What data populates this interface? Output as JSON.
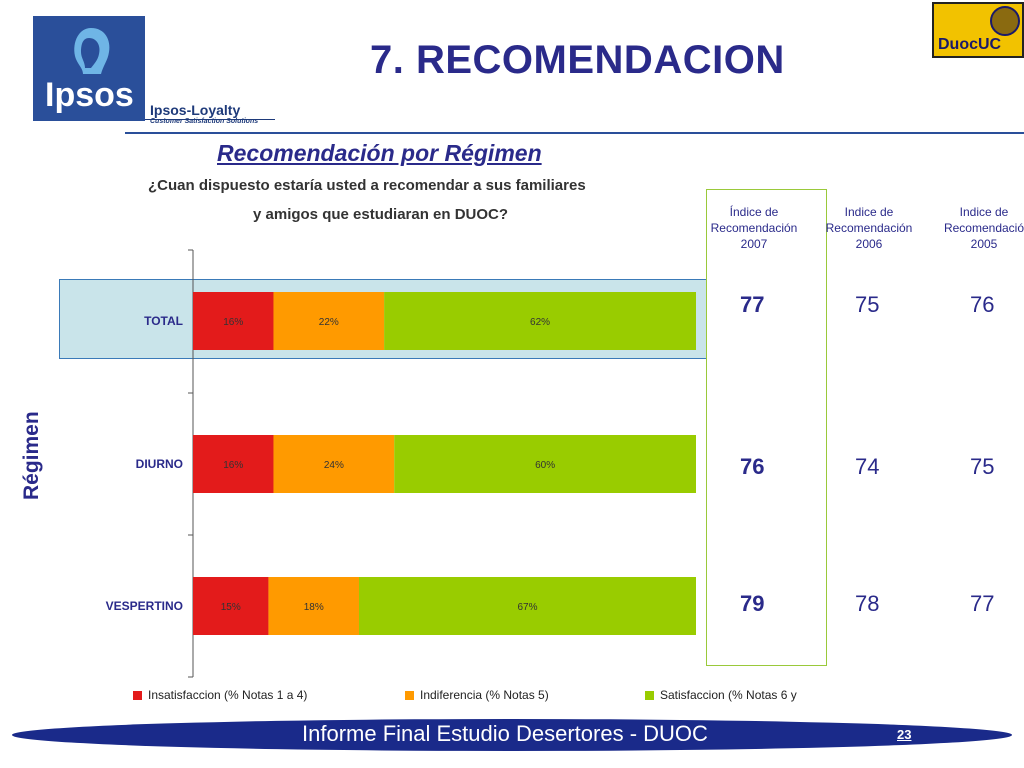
{
  "header": {
    "logo_text": "Ipsos",
    "loyalty_name": "Ipsos-Loyalty",
    "loyalty_tagline": "Customer Satisfaction Solutions",
    "title": "7. RECOMENDACION",
    "duoc_logo_text": "DuocUC"
  },
  "chart_data": {
    "type": "bar",
    "orientation": "horizontal",
    "stacked": true,
    "title": "Recomendación  por Régimen",
    "question_line1": "¿Cuan dispuesto estaría usted a  recomendar a sus familiares",
    "question_line2": "y amigos que estudiaran en DUOC?",
    "ylabel": "Régimen",
    "xlim": [
      0,
      100
    ],
    "categories": [
      "TOTAL",
      "DIURNO",
      "VESPERTINO"
    ],
    "series": [
      {
        "name": "Insatisfaccion (% Notas 1 a 4)",
        "color": "#e31b1b",
        "values": [
          16,
          16,
          15
        ],
        "labels": [
          "16%",
          "16%",
          "15%"
        ]
      },
      {
        "name": "Indiferencia (% Notas 5)",
        "color": "#ff9a00",
        "values": [
          22,
          24,
          18
        ],
        "labels": [
          "22%",
          "24%",
          "18%"
        ]
      },
      {
        "name": "Satisfaccion (% Notas 6 y",
        "color": "#99cc00",
        "values": [
          62,
          60,
          67
        ],
        "labels": [
          "62%",
          "60%",
          "67%"
        ]
      }
    ],
    "legend_position": "bottom",
    "index_columns": [
      {
        "head_line1": "Índice de",
        "head_line2": "Recomendación",
        "year": "2007",
        "values": [
          "77",
          "76",
          "79"
        ]
      },
      {
        "head_line1": "Indice de",
        "head_line2": "Recomendación",
        "year": "2006",
        "values": [
          "75",
          "74",
          "78"
        ]
      },
      {
        "head_line1": "Indice de",
        "head_line2": "Recomendació",
        "year": "2005",
        "values": [
          "76",
          "75",
          "77"
        ]
      }
    ]
  },
  "footer": {
    "text": "Informe Final Estudio Desertores - DUOC",
    "page_number": "23"
  }
}
